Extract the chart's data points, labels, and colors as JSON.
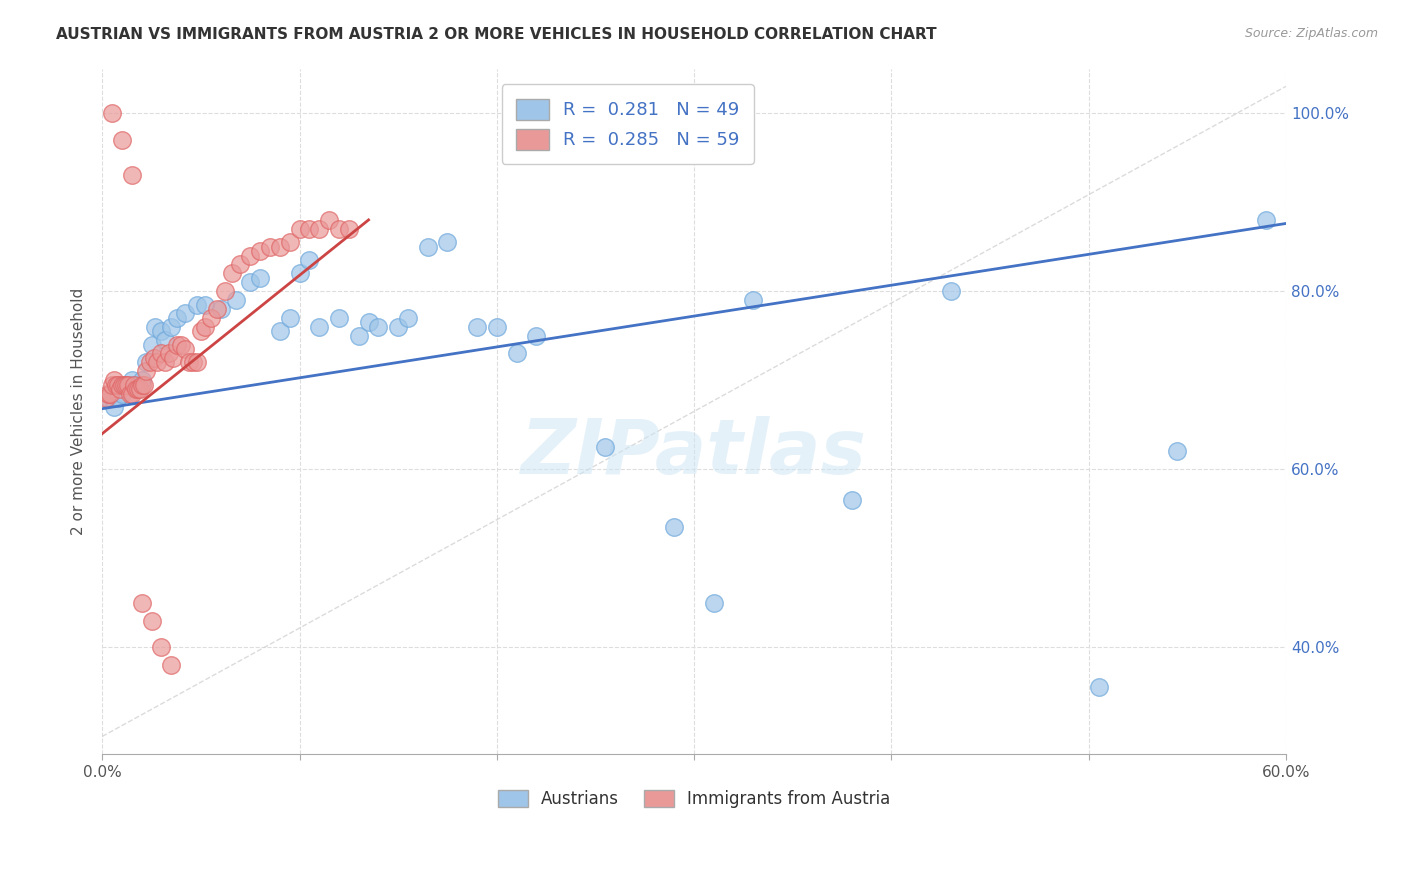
{
  "title": "AUSTRIAN VS IMMIGRANTS FROM AUSTRIA 2 OR MORE VEHICLES IN HOUSEHOLD CORRELATION CHART",
  "source": "Source: ZipAtlas.com",
  "ylabel": "2 or more Vehicles in Household",
  "xmin": 0.0,
  "xmax": 0.6,
  "ymin": 0.28,
  "ymax": 1.05,
  "x_tick_positions": [
    0.0,
    0.1,
    0.2,
    0.3,
    0.4,
    0.5,
    0.6
  ],
  "x_tick_labels_ends": [
    "0.0%",
    "",
    "",
    "",
    "",
    "",
    "60.0%"
  ],
  "y_ticks": [
    0.4,
    0.6,
    0.8,
    1.0
  ],
  "y_tick_labels": [
    "40.0%",
    "60.0%",
    "80.0%",
    "100.0%"
  ],
  "blue_color": "#9fc5e8",
  "pink_color": "#ea9999",
  "blue_edge": "#6fa8dc",
  "pink_edge": "#e06666",
  "trend_blue": "#4472c4",
  "trend_pink": "#cc4444",
  "trend_diag_color": "#cccccc",
  "legend_label_blue": "R =  0.281   N = 49",
  "legend_label_pink": "R =  0.285   N = 59",
  "legend_patch_blue": "#9fc5e8",
  "legend_patch_pink": "#ea9999",
  "watermark": "ZIPatlas",
  "blue_points_x": [
    0.003,
    0.006,
    0.008,
    0.01,
    0.013,
    0.015,
    0.016,
    0.018,
    0.02,
    0.022,
    0.025,
    0.027,
    0.03,
    0.032,
    0.035,
    0.038,
    0.042,
    0.048,
    0.052,
    0.06,
    0.068,
    0.075,
    0.08,
    0.09,
    0.095,
    0.1,
    0.105,
    0.11,
    0.12,
    0.13,
    0.135,
    0.14,
    0.15,
    0.155,
    0.165,
    0.175,
    0.19,
    0.2,
    0.21,
    0.22,
    0.255,
    0.29,
    0.31,
    0.33,
    0.38,
    0.43,
    0.505,
    0.545,
    0.59
  ],
  "blue_points_y": [
    0.68,
    0.67,
    0.68,
    0.685,
    0.695,
    0.7,
    0.695,
    0.695,
    0.7,
    0.72,
    0.74,
    0.76,
    0.755,
    0.745,
    0.76,
    0.77,
    0.775,
    0.785,
    0.785,
    0.78,
    0.79,
    0.81,
    0.815,
    0.755,
    0.77,
    0.82,
    0.835,
    0.76,
    0.77,
    0.75,
    0.765,
    0.76,
    0.76,
    0.77,
    0.85,
    0.855,
    0.76,
    0.76,
    0.73,
    0.75,
    0.625,
    0.535,
    0.45,
    0.79,
    0.565,
    0.8,
    0.355,
    0.62,
    0.88
  ],
  "pink_points_x": [
    0.002,
    0.003,
    0.004,
    0.005,
    0.006,
    0.007,
    0.008,
    0.009,
    0.01,
    0.011,
    0.012,
    0.013,
    0.014,
    0.015,
    0.016,
    0.017,
    0.018,
    0.019,
    0.02,
    0.021,
    0.022,
    0.024,
    0.026,
    0.028,
    0.03,
    0.032,
    0.034,
    0.036,
    0.038,
    0.04,
    0.042,
    0.044,
    0.046,
    0.048,
    0.05,
    0.052,
    0.055,
    0.058,
    0.062,
    0.066,
    0.07,
    0.075,
    0.08,
    0.085,
    0.09,
    0.095,
    0.1,
    0.105,
    0.11,
    0.115,
    0.12,
    0.125,
    0.005,
    0.01,
    0.015,
    0.02,
    0.025,
    0.03,
    0.035
  ],
  "pink_points_y": [
    0.68,
    0.685,
    0.685,
    0.695,
    0.7,
    0.695,
    0.695,
    0.69,
    0.695,
    0.695,
    0.695,
    0.695,
    0.685,
    0.685,
    0.695,
    0.69,
    0.69,
    0.69,
    0.695,
    0.695,
    0.71,
    0.72,
    0.725,
    0.72,
    0.73,
    0.72,
    0.73,
    0.725,
    0.74,
    0.74,
    0.735,
    0.72,
    0.72,
    0.72,
    0.755,
    0.76,
    0.77,
    0.78,
    0.8,
    0.82,
    0.83,
    0.84,
    0.845,
    0.85,
    0.85,
    0.855,
    0.87,
    0.87,
    0.87,
    0.88,
    0.87,
    0.87,
    1.0,
    0.97,
    0.93,
    0.45,
    0.43,
    0.4,
    0.38
  ]
}
